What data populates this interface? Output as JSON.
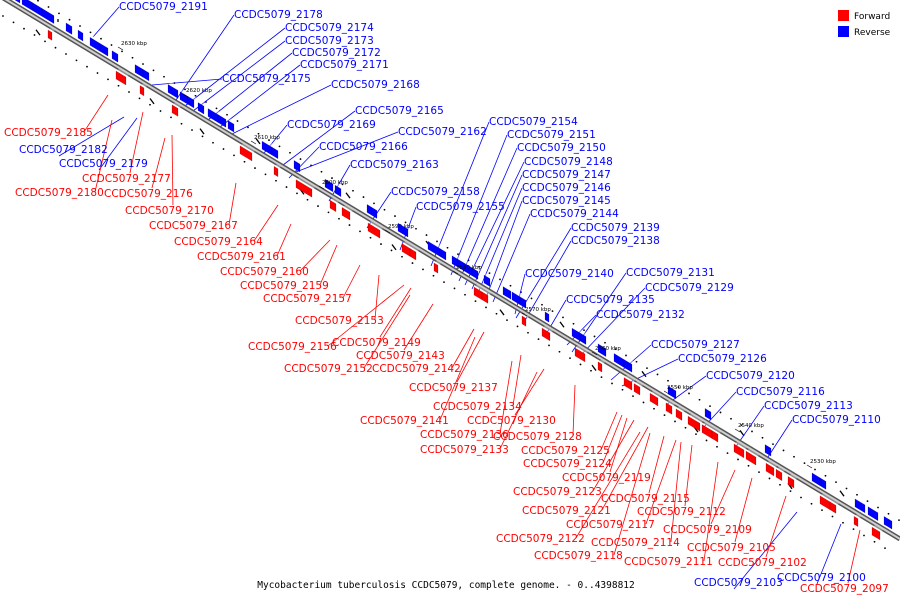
{
  "caption": "Mycobacterium tuberculosis CCDC5079, complete genome. - 0..4398812",
  "legend": [
    {
      "label": "Forward",
      "color": "#ff0000"
    },
    {
      "label": "Reverse",
      "color": "#0000ff"
    }
  ],
  "colors": {
    "forward": "#ff0000",
    "reverse": "#0000ff",
    "backbone": "#999999"
  },
  "kbp_ticks": [
    "2630 kbp",
    "2620 kbp",
    "2610 kbp",
    "2600 kbp",
    "2590 kbp",
    "2580 kbp",
    "2570 kbp",
    "2560 kbp",
    "2550 kbp",
    "2540 kbp",
    "2530 kbp"
  ],
  "genes": [
    {
      "name": "CCDC5079_2191",
      "strand": "reverse"
    },
    {
      "name": "CCDC5079_2178",
      "strand": "reverse"
    },
    {
      "name": "CCDC5079_2174",
      "strand": "reverse"
    },
    {
      "name": "CCDC5079_2173",
      "strand": "reverse"
    },
    {
      "name": "CCDC5079_2172",
      "strand": "reverse"
    },
    {
      "name": "CCDC5079_2171",
      "strand": "reverse"
    },
    {
      "name": "CCDC5079_2175",
      "strand": "reverse"
    },
    {
      "name": "CCDC5079_2168",
      "strand": "reverse"
    },
    {
      "name": "CCDC5079_2165",
      "strand": "reverse"
    },
    {
      "name": "CCDC5079_2169",
      "strand": "reverse"
    },
    {
      "name": "CCDC5079_2162",
      "strand": "reverse"
    },
    {
      "name": "CCDC5079_2166",
      "strand": "reverse"
    },
    {
      "name": "CCDC5079_2163",
      "strand": "reverse"
    },
    {
      "name": "CCDC5079_2158",
      "strand": "reverse"
    },
    {
      "name": "CCDC5079_2155",
      "strand": "reverse"
    },
    {
      "name": "CCDC5079_2154",
      "strand": "reverse"
    },
    {
      "name": "CCDC5079_2151",
      "strand": "reverse"
    },
    {
      "name": "CCDC5079_2150",
      "strand": "reverse"
    },
    {
      "name": "CCDC5079_2148",
      "strand": "reverse"
    },
    {
      "name": "CCDC5079_2147",
      "strand": "reverse"
    },
    {
      "name": "CCDC5079_2146",
      "strand": "reverse"
    },
    {
      "name": "CCDC5079_2145",
      "strand": "reverse"
    },
    {
      "name": "CCDC5079_2144",
      "strand": "reverse"
    },
    {
      "name": "CCDC5079_2139",
      "strand": "reverse"
    },
    {
      "name": "CCDC5079_2138",
      "strand": "reverse"
    },
    {
      "name": "CCDC5079_2140",
      "strand": "reverse"
    },
    {
      "name": "CCDC5079_2131",
      "strand": "reverse"
    },
    {
      "name": "CCDC5079_2129",
      "strand": "reverse"
    },
    {
      "name": "CCDC5079_2135",
      "strand": "reverse"
    },
    {
      "name": "CCDC5079_2132",
      "strand": "reverse"
    },
    {
      "name": "CCDC5079_2127",
      "strand": "reverse"
    },
    {
      "name": "CCDC5079_2126",
      "strand": "reverse"
    },
    {
      "name": "CCDC5079_2120",
      "strand": "reverse"
    },
    {
      "name": "CCDC5079_2116",
      "strand": "reverse"
    },
    {
      "name": "CCDC5079_2113",
      "strand": "reverse"
    },
    {
      "name": "CCDC5079_2110",
      "strand": "reverse"
    },
    {
      "name": "CCDC5079_2182",
      "strand": "reverse"
    },
    {
      "name": "CCDC5079_2179",
      "strand": "reverse"
    },
    {
      "name": "CCDC5079_2103",
      "strand": "reverse"
    },
    {
      "name": "CCDC5079_2100",
      "strand": "reverse"
    },
    {
      "name": "CCDC5079_2185",
      "strand": "forward"
    },
    {
      "name": "CCDC5079_2177",
      "strand": "forward"
    },
    {
      "name": "CCDC5079_2180",
      "strand": "forward"
    },
    {
      "name": "CCDC5079_2176",
      "strand": "forward"
    },
    {
      "name": "CCDC5079_2170",
      "strand": "forward"
    },
    {
      "name": "CCDC5079_2167",
      "strand": "forward"
    },
    {
      "name": "CCDC5079_2164",
      "strand": "forward"
    },
    {
      "name": "CCDC5079_2161",
      "strand": "forward"
    },
    {
      "name": "CCDC5079_2160",
      "strand": "forward"
    },
    {
      "name": "CCDC5079_2159",
      "strand": "forward"
    },
    {
      "name": "CCDC5079_2157",
      "strand": "forward"
    },
    {
      "name": "CCDC5079_2153",
      "strand": "forward"
    },
    {
      "name": "CCDC5079_2156",
      "strand": "forward"
    },
    {
      "name": "CCDC5079_2149",
      "strand": "forward"
    },
    {
      "name": "CCDC5079_2143",
      "strand": "forward"
    },
    {
      "name": "CCDC5079_2152",
      "strand": "forward"
    },
    {
      "name": "CCDC5079_2142",
      "strand": "forward"
    },
    {
      "name": "CCDC5079_2137",
      "strand": "forward"
    },
    {
      "name": "CCDC5079_2134",
      "strand": "forward"
    },
    {
      "name": "CCDC5079_2141",
      "strand": "forward"
    },
    {
      "name": "CCDC5079_2136",
      "strand": "forward"
    },
    {
      "name": "CCDC5079_2130",
      "strand": "forward"
    },
    {
      "name": "CCDC5079_2128",
      "strand": "forward"
    },
    {
      "name": "CCDC5079_2133",
      "strand": "forward"
    },
    {
      "name": "CCDC5079_2125",
      "strand": "forward"
    },
    {
      "name": "CCDC5079_2124",
      "strand": "forward"
    },
    {
      "name": "CCDC5079_2119",
      "strand": "forward"
    },
    {
      "name": "CCDC5079_2123",
      "strand": "forward"
    },
    {
      "name": "CCDC5079_2115",
      "strand": "forward"
    },
    {
      "name": "CCDC5079_2121",
      "strand": "forward"
    },
    {
      "name": "CCDC5079_2112",
      "strand": "forward"
    },
    {
      "name": "CCDC5079_2117",
      "strand": "forward"
    },
    {
      "name": "CCDC5079_2122",
      "strand": "forward"
    },
    {
      "name": "CCDC5079_2114",
      "strand": "forward"
    },
    {
      "name": "CCDC5079_2109",
      "strand": "forward"
    },
    {
      "name": "CCDC5079_2118",
      "strand": "forward"
    },
    {
      "name": "CCDC5079_2111",
      "strand": "forward"
    },
    {
      "name": "CCDC5079_2105",
      "strand": "forward"
    },
    {
      "name": "CCDC5079_2102",
      "strand": "forward"
    },
    {
      "name": "CCDC5079_2097",
      "strand": "forward"
    }
  ]
}
